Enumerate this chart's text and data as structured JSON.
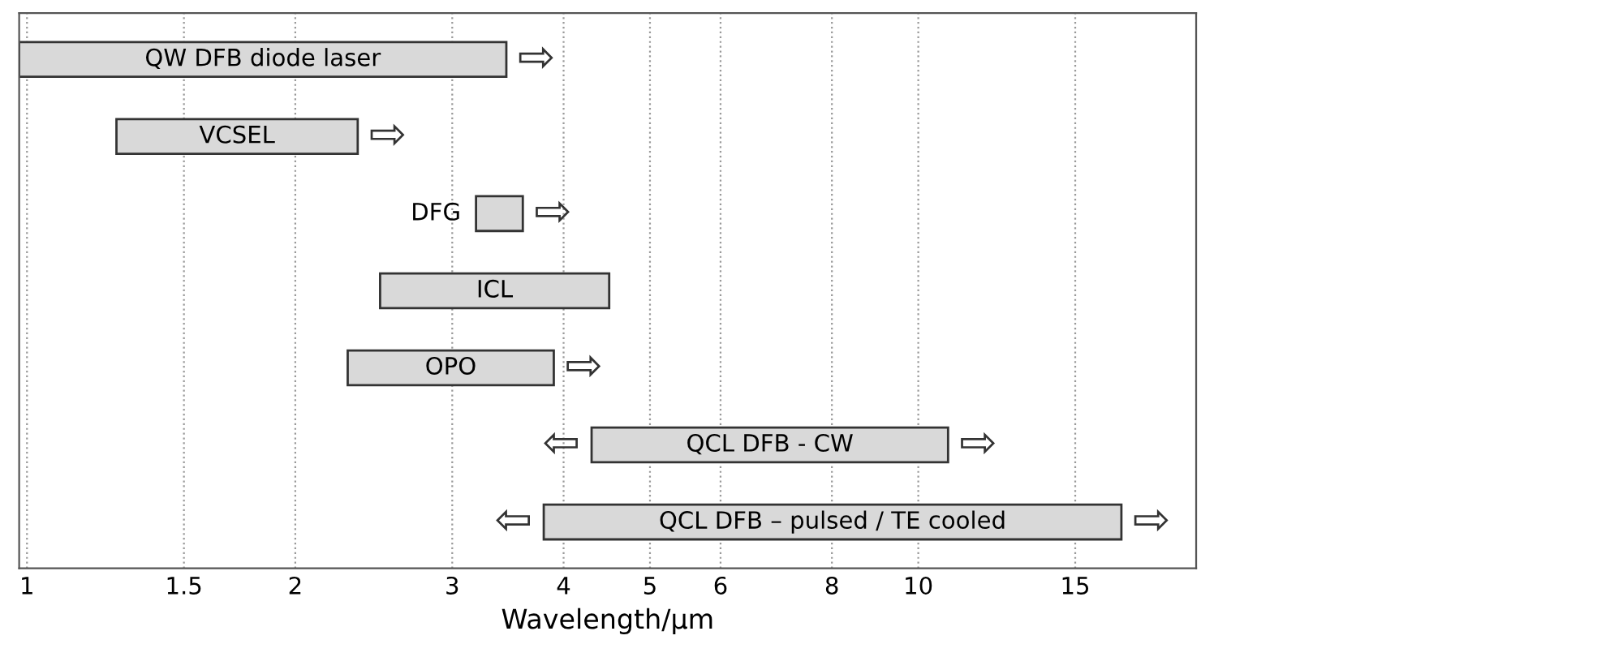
{
  "chart_data": {
    "type": "bar",
    "orientation": "horizontal",
    "xlabel": "Wavelength/µm",
    "categories": [
      "QW DFB diode laser",
      "VCSEL",
      "DFG",
      "ICL",
      "OPO",
      "QCL DFB - CW",
      "QCL DFB – pulsed / TE cooled"
    ],
    "base": [
      0.98,
      1.26,
      3.19,
      2.49,
      2.29,
      4.3,
      3.8
    ],
    "values": [
      2.47,
      1.09,
      0.41,
      2.01,
      1.61,
      6.5,
      13.1
    ],
    "color": "#d9d9d9",
    "log": "x",
    "xlim": [
      0.98,
      20.5
    ],
    "xticks": [
      1,
      1.5,
      2,
      3,
      4,
      5,
      6,
      8,
      10,
      15
    ],
    "grid": "x",
    "tick_labels": "x",
    "annotations": [
      {
        "text": "⇨",
        "x": 3.45,
        "y": "QW DFB diode laser"
      },
      {
        "text": "⇨",
        "x": 2.35,
        "y": "VCSEL"
      },
      {
        "text": "⇨",
        "x": 3.6,
        "y": "DFG"
      },
      {
        "text": "⇨",
        "x": 3.9,
        "y": "OPO"
      },
      {
        "text": "⇦",
        "x": 4.3,
        "y": "QCL DFB - CW"
      },
      {
        "text": "⇨",
        "x": 10.8,
        "y": "QCL DFB - CW"
      },
      {
        "text": "⇦",
        "x": 3.8,
        "y": "QCL DFB – pulsed / TE cooled"
      },
      {
        "text": "⇨",
        "x": 16.9,
        "y": "QCL DFB – pulsed / TE cooled"
      }
    ]
  }
}
